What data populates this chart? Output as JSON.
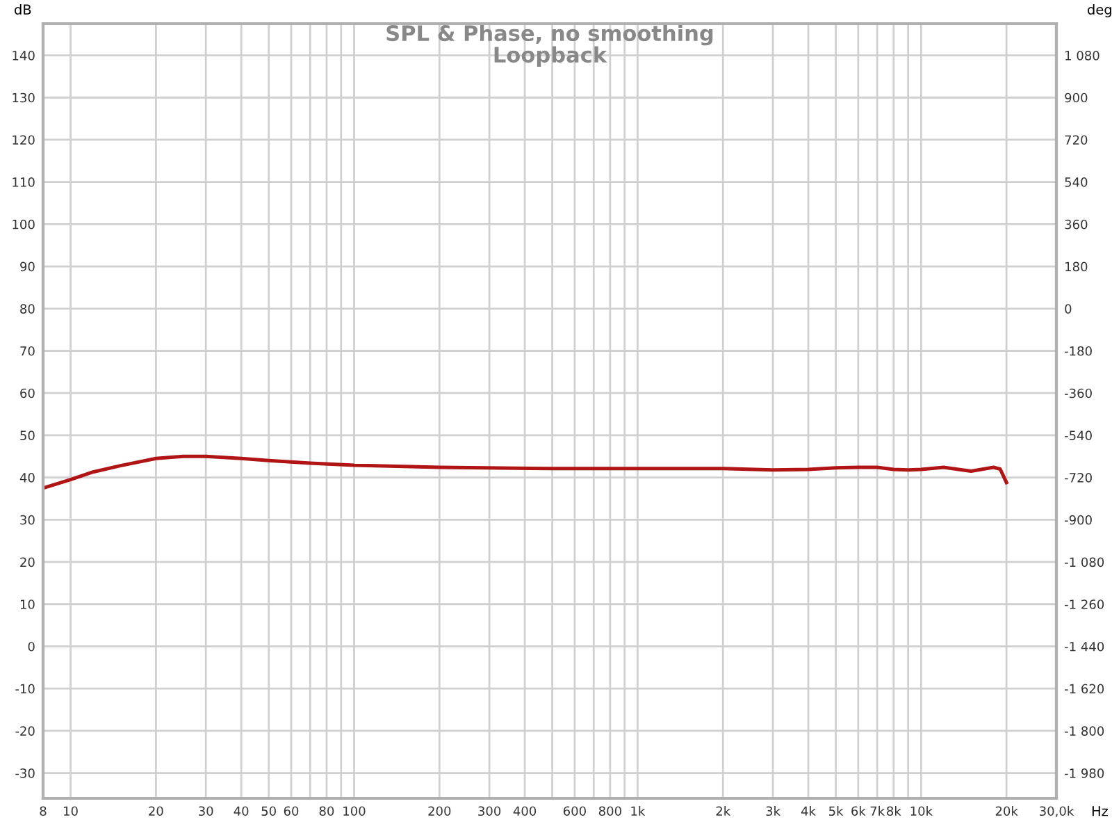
{
  "chart_data": {
    "type": "line",
    "title": "SPL & Phase, no smoothing",
    "subtitle": "Loopback",
    "xlabel": "Hz",
    "ylabel": "dB",
    "y2label": "deg",
    "log": "x",
    "x": [
      8,
      10,
      12,
      15,
      20,
      25,
      30,
      40,
      50,
      70,
      100,
      200,
      500,
      1000,
      2000,
      3000,
      4000,
      5000,
      6000,
      7000,
      8000,
      9000,
      10000,
      12000,
      15000,
      18000,
      19000,
      20000
    ],
    "series": [
      {
        "color": "#b01414",
        "values": [
          37.5,
          39.5,
          41.3,
          42.8,
          44.5,
          45.0,
          45.0,
          44.5,
          44.0,
          43.4,
          42.9,
          42.4,
          42.1,
          42.1,
          42.1,
          41.8,
          41.9,
          42.3,
          42.4,
          42.4,
          41.9,
          41.8,
          41.9,
          42.4,
          41.5,
          42.4,
          42.0,
          38.8
        ]
      }
    ],
    "xlim": [
      8,
      30000
    ],
    "ylim": [
      -36,
      147.5
    ],
    "y2lim": [
      -2088,
      1215
    ],
    "xticks": [
      8,
      10,
      20,
      30,
      40,
      50,
      60,
      {
        "value": 70,
        "label": null
      },
      80,
      {
        "value": 90,
        "label": null
      },
      100,
      200,
      300,
      400,
      {
        "value": 500,
        "label": null
      },
      600,
      {
        "value": 700,
        "label": null
      },
      800,
      {
        "value": 900,
        "label": null
      },
      {
        "value": 1000,
        "label": "1k"
      },
      {
        "value": 2000,
        "label": "2k"
      },
      {
        "value": 3000,
        "label": "3k"
      },
      {
        "value": 4000,
        "label": "4k"
      },
      {
        "value": 5000,
        "label": "5k"
      },
      {
        "value": 6000,
        "label": "6k"
      },
      {
        "value": 7000,
        "label": "7k"
      },
      {
        "value": 8000,
        "label": "8k"
      },
      {
        "value": 9000,
        "label": null
      },
      {
        "value": 10000,
        "label": "10k"
      },
      {
        "value": 20000,
        "label": "20k"
      },
      {
        "value": 30000,
        "label": "30,0k"
      }
    ],
    "yticks": [
      -30,
      -20,
      -10,
      0,
      10,
      20,
      30,
      40,
      50,
      60,
      70,
      80,
      90,
      100,
      110,
      120,
      130,
      140
    ],
    "y2ticks": [
      {
        "value": -1980,
        "label": "-1 980"
      },
      {
        "value": -1800,
        "label": "-1 800"
      },
      {
        "value": -1620,
        "label": "-1 620"
      },
      {
        "value": -1440,
        "label": "-1 440"
      },
      {
        "value": -1260,
        "label": "-1 260"
      },
      {
        "value": -1080,
        "label": "-1 080"
      },
      -900,
      -720,
      -540,
      -360,
      -180,
      0,
      180,
      360,
      540,
      720,
      900,
      {
        "value": 1080,
        "label": "1 080"
      }
    ],
    "grid": true,
    "legend": false,
    "marker": "none",
    "line_style": "solid"
  }
}
